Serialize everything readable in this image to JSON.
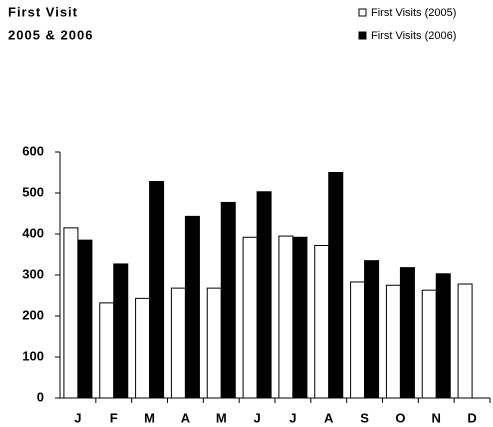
{
  "chart_data": {
    "type": "bar",
    "title": "First Visit",
    "subtitle": "2005 & 2006",
    "categories": [
      "J",
      "F",
      "M",
      "A",
      "M",
      "J",
      "J",
      "A",
      "S",
      "O",
      "N",
      "D"
    ],
    "series": [
      {
        "name": "First Visits (2005)",
        "color": "#ffffff",
        "values": [
          415,
          232,
          243,
          268,
          268,
          392,
          395,
          372,
          283,
          275,
          263,
          278
        ]
      },
      {
        "name": "First Visits (2006)",
        "color": "#000000",
        "values": [
          385,
          327,
          528,
          443,
          477,
          503,
          392,
          550,
          335,
          318,
          303,
          null
        ]
      }
    ],
    "ylim": [
      0,
      600
    ],
    "yticks": [
      0,
      100,
      200,
      300,
      400,
      500,
      600
    ],
    "grid": false,
    "legend": "top-right"
  }
}
